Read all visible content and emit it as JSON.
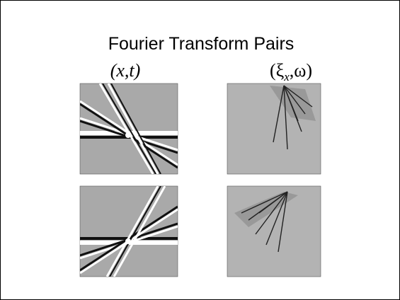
{
  "header": {
    "title": "Fourier Transform Pairs"
  },
  "labels": [
    {
      "text": "(x,t)"
    },
    {
      "open": "(ξ",
      "sub": "x",
      "rest": ",ω)"
    }
  ]
}
